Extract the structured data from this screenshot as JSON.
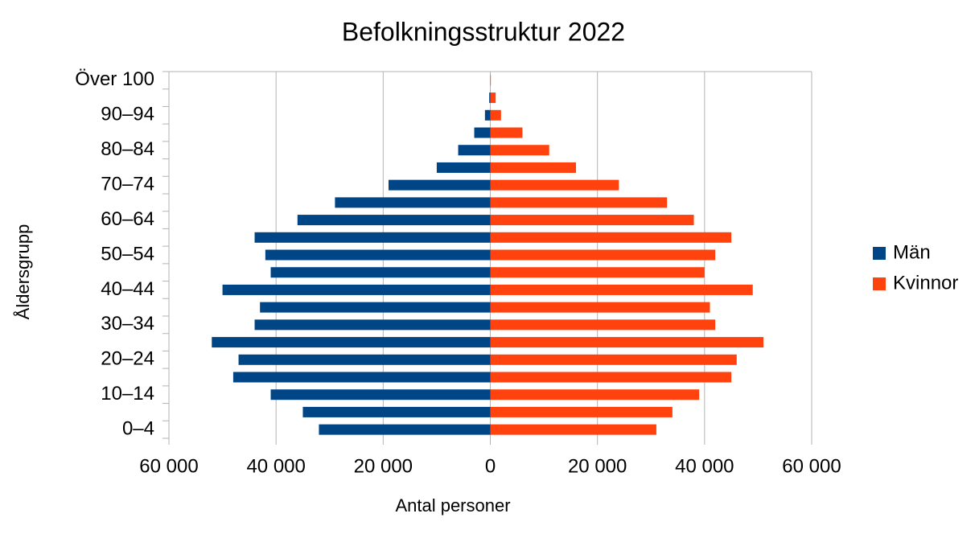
{
  "chart_data": {
    "type": "bar",
    "orientation": "horizontal",
    "stacked": true,
    "title": "Befolkningsstruktur 2022",
    "x_label": "Antal personer",
    "y_label": "Åldersgrupp",
    "categories": [
      "0–4",
      null,
      "10–14",
      null,
      "20–24",
      null,
      "30–34",
      null,
      "40–44",
      null,
      "50–54",
      null,
      "60–64",
      null,
      "70–74",
      null,
      "80–84",
      null,
      "90–94",
      null,
      "Över 100"
    ],
    "series": [
      {
        "name": "Män",
        "color": "#004586",
        "values": [
          -32000,
          -35000,
          -41000,
          -48000,
          -47000,
          -52000,
          -44000,
          -43000,
          -50000,
          -41000,
          -42000,
          -44000,
          -36000,
          -29000,
          -19000,
          -10000,
          -6000,
          -3000,
          -1000,
          -200,
          0
        ]
      },
      {
        "name": "Kvinnor",
        "color": "#ff420e",
        "values": [
          31000,
          34000,
          39000,
          45000,
          46000,
          51000,
          42000,
          41000,
          49000,
          40000,
          42000,
          45000,
          38000,
          33000,
          24000,
          16000,
          11000,
          6000,
          2000,
          1000,
          100
        ]
      }
    ],
    "xlim": [
      -60000,
      60000
    ],
    "xticks": [
      {
        "value": -60000,
        "label": "60 000"
      },
      {
        "value": -40000,
        "label": "40 000"
      },
      {
        "value": -20000,
        "label": "20 000"
      },
      0,
      {
        "value": 20000,
        "label": "20 000"
      },
      {
        "value": 40000,
        "label": "40 000"
      },
      {
        "value": 60000,
        "label": "60 000"
      }
    ],
    "grid": true,
    "legend": "right"
  }
}
